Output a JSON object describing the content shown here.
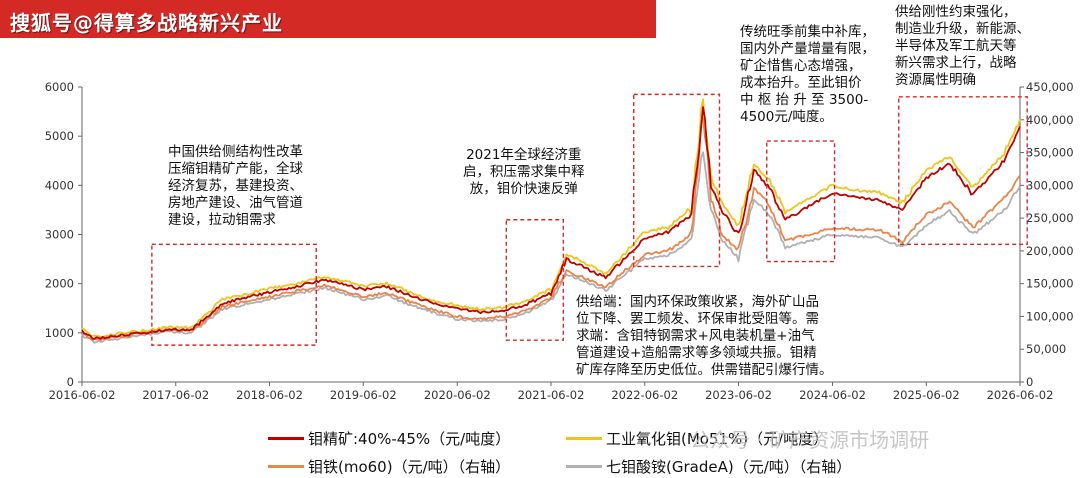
{
  "header": {
    "title": "搜狐号@得算多战略新兴产业",
    "color": "#d42a26"
  },
  "chart_data": {
    "type": "line",
    "grid": false,
    "x_ticks": [
      "2016-06-02",
      "2017-06-02",
      "2018-06-02",
      "2019-06-02",
      "2020-06-02",
      "2021-06-02",
      "2022-06-02",
      "2023-06-02",
      "2024-06-02",
      "2025-06-02",
      "2026-06-02"
    ],
    "y_left": {
      "ticks": [
        "0",
        "1000",
        "2000",
        "3000",
        "4000",
        "5000",
        "6000"
      ],
      "range": [
        0,
        6000
      ]
    },
    "y_right": {
      "ticks": [
        "0",
        "50,000",
        "100,000",
        "150,000",
        "200,000",
        "250,000",
        "300,000",
        "350,000",
        "400,000",
        "450,000"
      ],
      "range": [
        0,
        450000
      ]
    },
    "series": [
      {
        "name": "钼精矿:40%-45%（元/吨度）",
        "axis": "left",
        "color": "#c00000",
        "points": [
          [
            "2016-06-02",
            1030
          ],
          [
            "2016-07-20",
            880
          ],
          [
            "2016-10-01",
            930
          ],
          [
            "2017-02-01",
            1000
          ],
          [
            "2017-05-01",
            1070
          ],
          [
            "2017-08-01",
            1060
          ],
          [
            "2017-12-01",
            1600
          ],
          [
            "2018-06-02",
            1830
          ],
          [
            "2018-10-01",
            1960
          ],
          [
            "2019-01-01",
            2080
          ],
          [
            "2019-06-02",
            1880
          ],
          [
            "2019-09-01",
            1940
          ],
          [
            "2019-12-01",
            1760
          ],
          [
            "2020-03-01",
            1600
          ],
          [
            "2020-06-02",
            1500
          ],
          [
            "2020-09-01",
            1420
          ],
          [
            "2020-12-01",
            1460
          ],
          [
            "2021-03-01",
            1580
          ],
          [
            "2021-06-02",
            1820
          ],
          [
            "2021-08-01",
            2500
          ],
          [
            "2021-10-01",
            2350
          ],
          [
            "2022-01-01",
            2120
          ],
          [
            "2022-06-02",
            2930
          ],
          [
            "2022-09-01",
            3050
          ],
          [
            "2022-12-01",
            3400
          ],
          [
            "2023-01-15",
            5600
          ],
          [
            "2023-02-15",
            4000
          ],
          [
            "2023-04-01",
            3450
          ],
          [
            "2023-06-02",
            3000
          ],
          [
            "2023-08-01",
            4300
          ],
          [
            "2023-10-01",
            3950
          ],
          [
            "2023-12-01",
            3300
          ],
          [
            "2024-06-02",
            3850
          ],
          [
            "2024-09-01",
            3750
          ],
          [
            "2024-12-01",
            3700
          ],
          [
            "2025-03-01",
            3500
          ],
          [
            "2025-06-02",
            4150
          ],
          [
            "2025-09-01",
            4450
          ],
          [
            "2025-12-01",
            3800
          ],
          [
            "2026-04-01",
            4500
          ],
          [
            "2026-06-02",
            5200
          ]
        ]
      },
      {
        "name": "工业氧化钼(Mo51%)（元/吨度）",
        "axis": "left",
        "color": "#f0c419",
        "points": [
          [
            "2016-06-02",
            1070
          ],
          [
            "2016-07-20",
            920
          ],
          [
            "2016-10-01",
            970
          ],
          [
            "2017-02-01",
            1050
          ],
          [
            "2017-05-01",
            1120
          ],
          [
            "2017-08-01",
            1110
          ],
          [
            "2017-12-01",
            1680
          ],
          [
            "2018-06-02",
            1900
          ],
          [
            "2018-10-01",
            2020
          ],
          [
            "2019-01-01",
            2150
          ],
          [
            "2019-06-02",
            1950
          ],
          [
            "2019-09-01",
            2010
          ],
          [
            "2019-12-01",
            1820
          ],
          [
            "2020-03-01",
            1660
          ],
          [
            "2020-06-02",
            1560
          ],
          [
            "2020-09-01",
            1480
          ],
          [
            "2020-12-01",
            1520
          ],
          [
            "2021-03-01",
            1650
          ],
          [
            "2021-06-02",
            1900
          ],
          [
            "2021-08-01",
            2600
          ],
          [
            "2021-10-01",
            2450
          ],
          [
            "2022-01-01",
            2200
          ],
          [
            "2022-06-02",
            3050
          ],
          [
            "2022-09-01",
            3150
          ],
          [
            "2022-12-01",
            3550
          ],
          [
            "2023-01-15",
            5750
          ],
          [
            "2023-02-15",
            4150
          ],
          [
            "2023-04-01",
            3600
          ],
          [
            "2023-06-02",
            3150
          ],
          [
            "2023-08-01",
            4450
          ],
          [
            "2023-10-01",
            4100
          ],
          [
            "2023-12-01",
            3450
          ],
          [
            "2024-06-02",
            4000
          ],
          [
            "2024-09-01",
            3900
          ],
          [
            "2024-12-01",
            3850
          ],
          [
            "2025-03-01",
            3650
          ],
          [
            "2025-06-02",
            4300
          ],
          [
            "2025-09-01",
            4600
          ],
          [
            "2025-12-01",
            3950
          ],
          [
            "2026-04-01",
            4650
          ],
          [
            "2026-06-02",
            5350
          ]
        ]
      },
      {
        "name": "钼铁(mo60)（元/吨）（右轴）",
        "axis": "right",
        "color": "#e9854a",
        "points": [
          [
            "2016-06-02",
            74000
          ],
          [
            "2016-07-20",
            64000
          ],
          [
            "2016-10-01",
            68000
          ],
          [
            "2017-02-01",
            75000
          ],
          [
            "2017-05-01",
            80000
          ],
          [
            "2017-08-01",
            78000
          ],
          [
            "2017-12-01",
            115000
          ],
          [
            "2018-06-02",
            130000
          ],
          [
            "2018-10-01",
            140000
          ],
          [
            "2019-01-01",
            148000
          ],
          [
            "2019-06-02",
            130000
          ],
          [
            "2019-09-01",
            136000
          ],
          [
            "2019-12-01",
            122000
          ],
          [
            "2020-03-01",
            110000
          ],
          [
            "2020-06-02",
            100000
          ],
          [
            "2020-09-01",
            96000
          ],
          [
            "2020-12-01",
            100000
          ],
          [
            "2021-03-01",
            110000
          ],
          [
            "2021-06-02",
            128000
          ],
          [
            "2021-08-01",
            170000
          ],
          [
            "2021-10-01",
            160000
          ],
          [
            "2022-01-01",
            145000
          ],
          [
            "2022-06-02",
            195000
          ],
          [
            "2022-09-01",
            200000
          ],
          [
            "2022-12-01",
            225000
          ],
          [
            "2023-01-15",
            415000
          ],
          [
            "2023-02-15",
            280000
          ],
          [
            "2023-04-01",
            225000
          ],
          [
            "2023-06-02",
            200000
          ],
          [
            "2023-08-01",
            295000
          ],
          [
            "2023-10-01",
            270000
          ],
          [
            "2023-12-01",
            215000
          ],
          [
            "2024-06-02",
            235000
          ],
          [
            "2024-09-01",
            233000
          ],
          [
            "2024-12-01",
            232000
          ],
          [
            "2025-03-01",
            215000
          ],
          [
            "2025-06-02",
            255000
          ],
          [
            "2025-09-01",
            275000
          ],
          [
            "2025-12-01",
            235000
          ],
          [
            "2026-04-01",
            280000
          ],
          [
            "2026-06-02",
            315000
          ]
        ]
      },
      {
        "name": "七钼酸铵(GradeA)（元/吨）（右轴）",
        "axis": "right",
        "color": "#b0b0b0",
        "points": [
          [
            "2016-06-02",
            71000
          ],
          [
            "2016-07-20",
            61000
          ],
          [
            "2016-10-01",
            65000
          ],
          [
            "2017-02-01",
            72000
          ],
          [
            "2017-05-01",
            77000
          ],
          [
            "2017-08-01",
            75000
          ],
          [
            "2017-12-01",
            111000
          ],
          [
            "2018-06-02",
            126000
          ],
          [
            "2018-10-01",
            136000
          ],
          [
            "2019-01-01",
            144000
          ],
          [
            "2019-06-02",
            126000
          ],
          [
            "2019-09-01",
            132000
          ],
          [
            "2019-12-01",
            118000
          ],
          [
            "2020-03-01",
            106000
          ],
          [
            "2020-06-02",
            96000
          ],
          [
            "2020-09-01",
            92000
          ],
          [
            "2020-12-01",
            96000
          ],
          [
            "2021-03-01",
            106000
          ],
          [
            "2021-06-02",
            124000
          ],
          [
            "2021-08-01",
            165000
          ],
          [
            "2021-10-01",
            155000
          ],
          [
            "2022-01-01",
            140000
          ],
          [
            "2022-06-02",
            188000
          ],
          [
            "2022-09-01",
            193000
          ],
          [
            "2022-12-01",
            218000
          ],
          [
            "2023-01-15",
            360000
          ],
          [
            "2023-02-15",
            265000
          ],
          [
            "2023-04-01",
            215000
          ],
          [
            "2023-06-02",
            190000
          ],
          [
            "2023-08-01",
            280000
          ],
          [
            "2023-10-01",
            255000
          ],
          [
            "2023-12-01",
            205000
          ],
          [
            "2024-06-02",
            225000
          ],
          [
            "2024-09-01",
            222000
          ],
          [
            "2024-12-01",
            220000
          ],
          [
            "2025-03-01",
            205000
          ],
          [
            "2025-06-02",
            240000
          ],
          [
            "2025-09-01",
            260000
          ],
          [
            "2025-12-01",
            225000
          ],
          [
            "2026-04-01",
            262000
          ],
          [
            "2026-06-02",
            298000
          ]
        ]
      }
    ],
    "highlight_boxes": [
      {
        "id": "box1",
        "from": "2017-03-01",
        "to": "2018-12-01",
        "y_from": 750,
        "y_to": 2800
      },
      {
        "id": "box2",
        "from": "2020-12-10",
        "to": "2021-07-20",
        "y_from": 850,
        "y_to": 3300
      },
      {
        "id": "box3",
        "from": "2022-04-20",
        "to": "2023-03-20",
        "y_from": 2350,
        "y_to": 5850
      },
      {
        "id": "box4",
        "from": "2023-09-20",
        "to": "2024-06-10",
        "y_from": 2450,
        "y_to": 4900
      },
      {
        "id": "box5",
        "from": "2025-02-15",
        "to": "2026-06-30",
        "y_from": 2800,
        "y_to": 5800
      }
    ]
  },
  "annotations": [
    {
      "id": "ann1",
      "lines": [
        "中国供给侧结构性改革",
        "压缩钼精矿产能，全球",
        "经济复苏，基建投资、",
        "房地产建设、油气管道",
        "建设，拉动钼需求"
      ]
    },
    {
      "id": "ann2",
      "lines": [
        "2021年全球经济重",
        "启，积压需求集中释",
        "放，钼价快速反弹"
      ]
    },
    {
      "id": "ann3",
      "lines": [
        "供给端：国内环保政策收紧，海外矿山品",
        "位下降、罢工频发、环保审批受阻等。需",
        "求端：含钼特钢需求+风电装机量+油气",
        "管道建设+造船需求等多领域共振。钼精",
        "矿库存降至历史低位。供需错配引爆行情。"
      ]
    },
    {
      "id": "ann4",
      "lines": [
        "传统旺季前集中补库，",
        "国内外产量增量有限，",
        "矿企惜售心态增强，",
        "成本抬升。至此钼价",
        "中 枢 抬 升 至 3500-",
        "4500元/吨度。"
      ]
    },
    {
      "id": "ann5",
      "lines": [
        "供给刚性约束强化，",
        "制造业升级，新能源、",
        "半导体及军工航天等",
        "新兴需求上行，战略",
        "资源属性明确"
      ]
    }
  ],
  "watermark": "公众号 · 矿产资源市场调研"
}
